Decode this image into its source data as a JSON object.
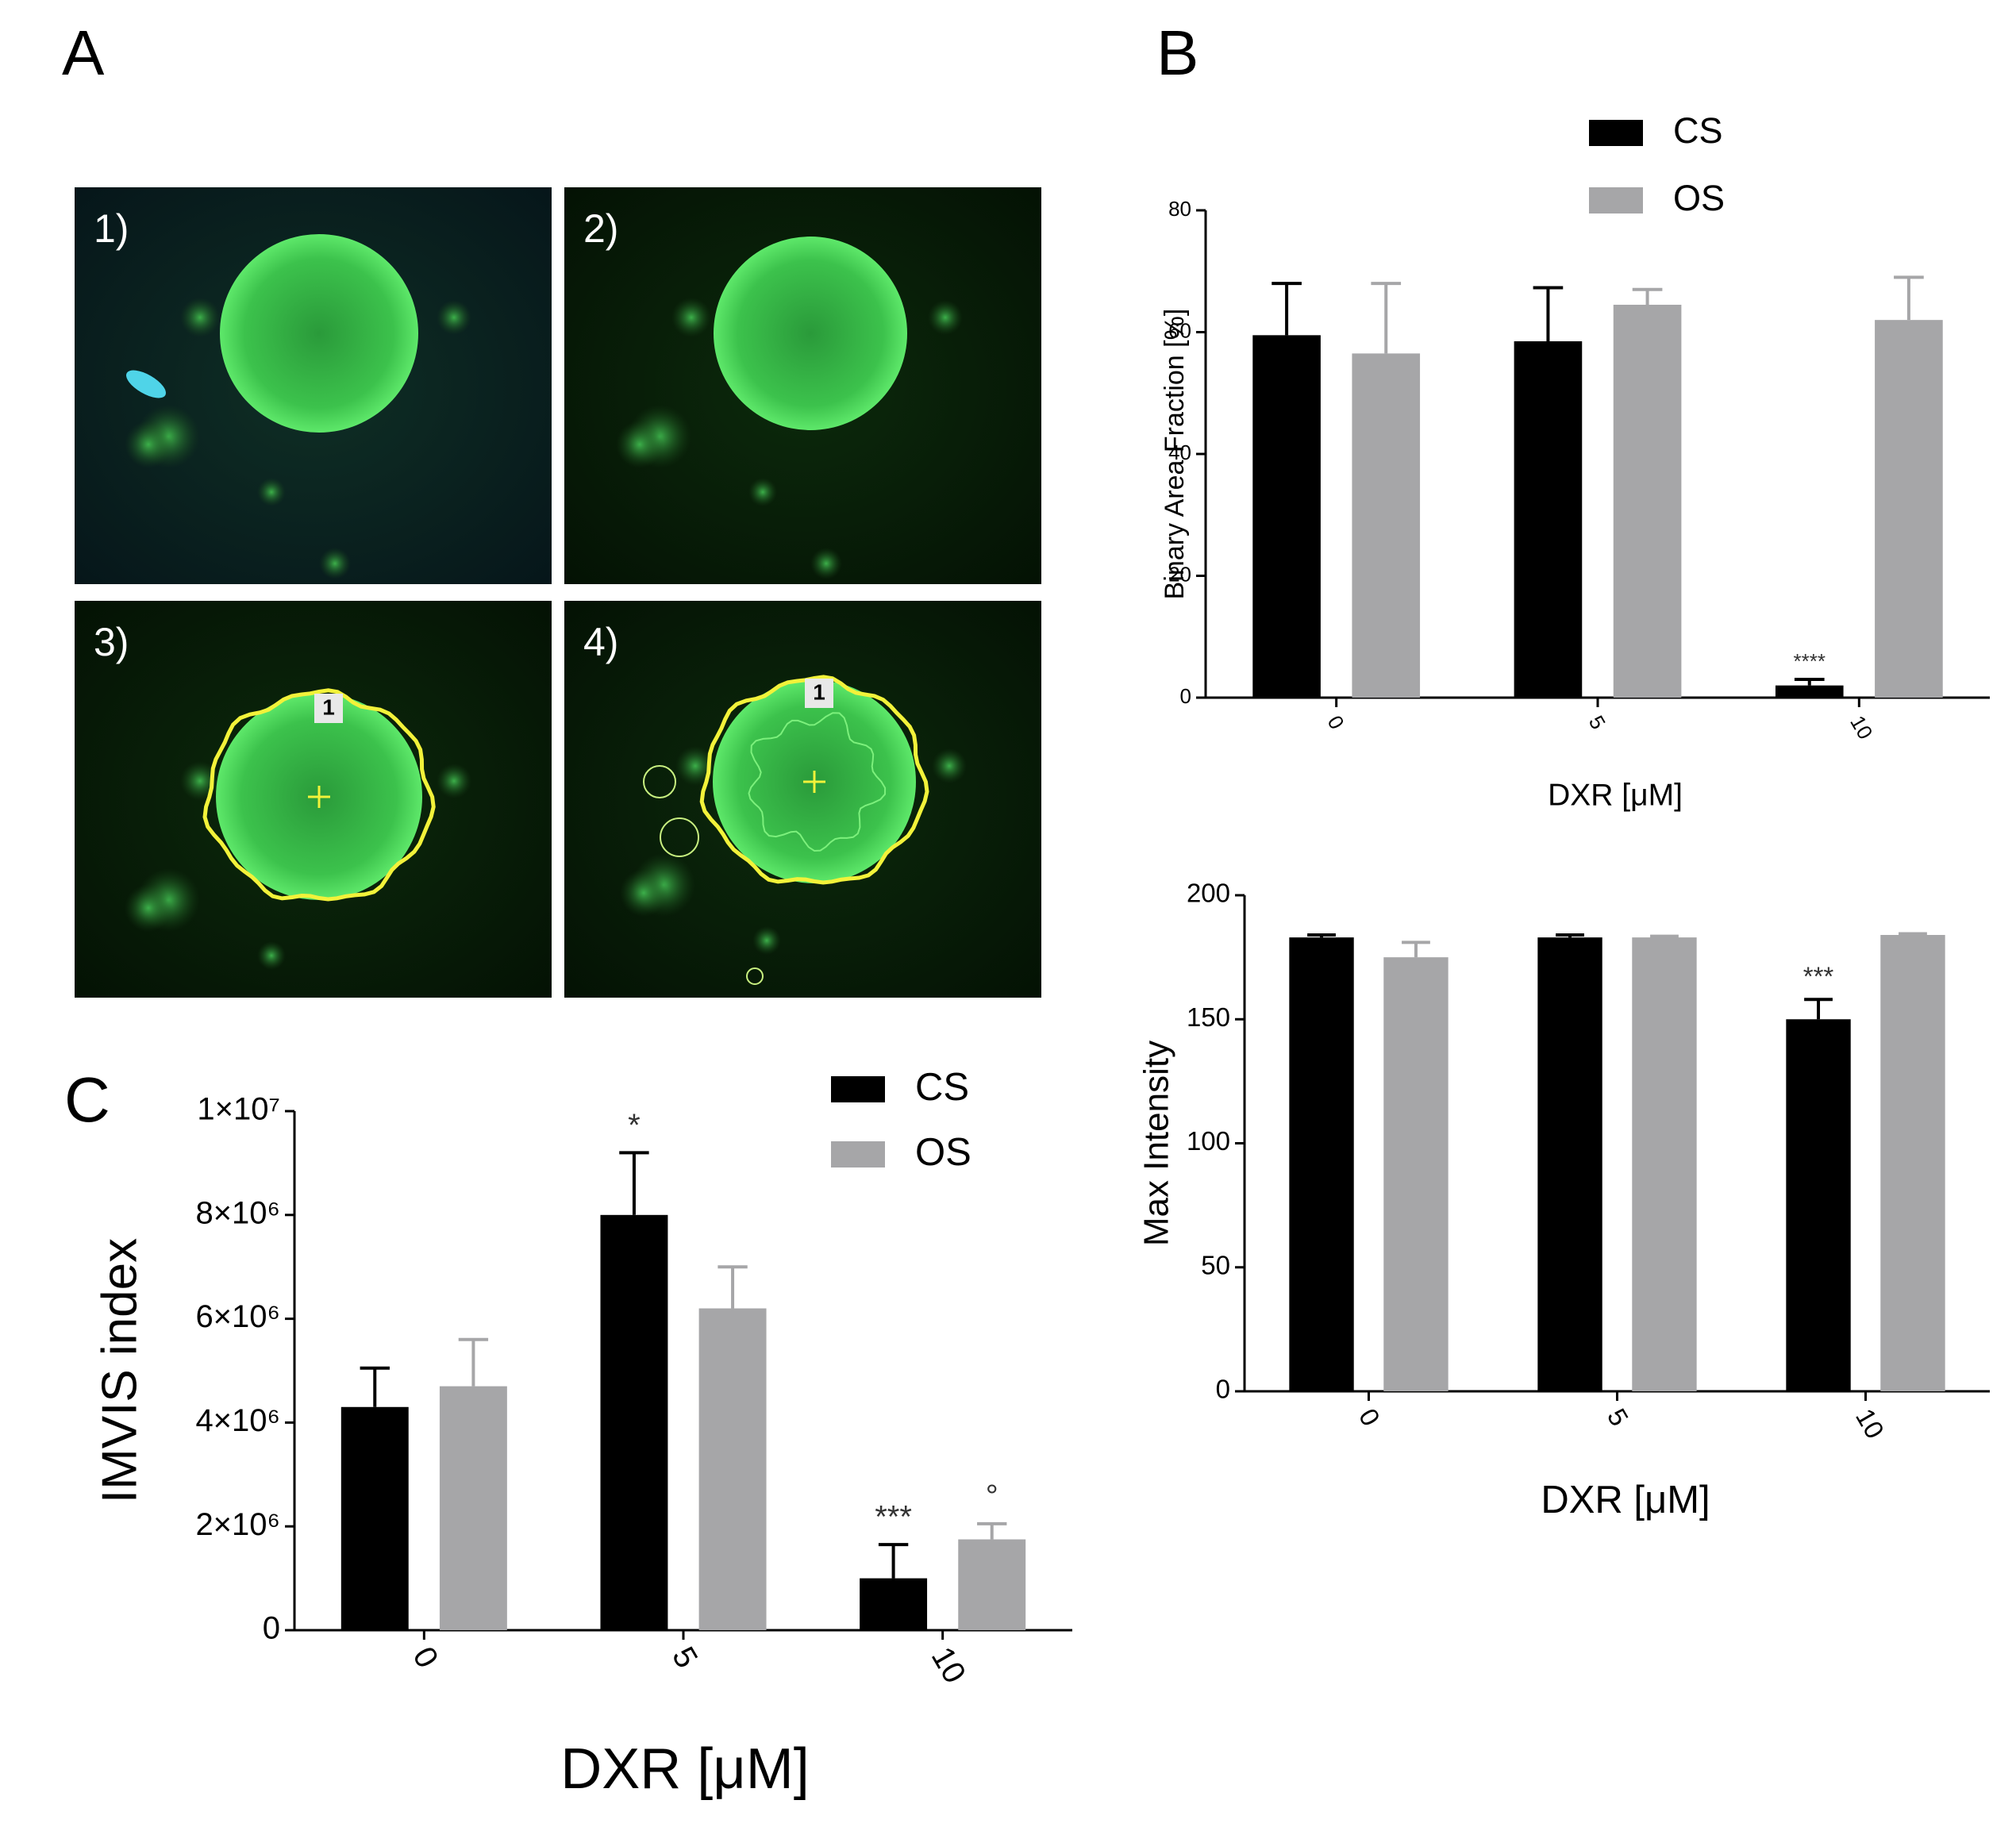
{
  "panel_labels": [
    "A",
    "B",
    "C"
  ],
  "image_labels": [
    "1)",
    "2)",
    "3)",
    "4)"
  ],
  "roi_labels": [
    "1",
    "1"
  ],
  "chart_data": [
    {
      "type": "bar",
      "y_label": "Binary Area Fraction [%]",
      "x_label": "DXR [μM]",
      "categories": [
        "0",
        "5",
        "10"
      ],
      "ylim": [
        0,
        80
      ],
      "yticks": [
        0,
        20,
        40,
        60,
        80
      ],
      "legend": true,
      "series": [
        {
          "name": "CS",
          "color": "#000000",
          "values": [
            59.5,
            58.5,
            2
          ],
          "errors": [
            8.5,
            8.8,
            1
          ],
          "annotations": [
            null,
            null,
            "****"
          ]
        },
        {
          "name": "OS",
          "color": "#a6a6a8",
          "values": [
            56.5,
            64.5,
            62
          ],
          "errors": [
            11.5,
            2.5,
            7
          ],
          "annotations": [
            null,
            null,
            null
          ]
        }
      ]
    },
    {
      "type": "bar",
      "y_label": "Max Intensity",
      "x_label": "DXR [μM]",
      "categories": [
        "0",
        "5",
        "10"
      ],
      "ylim": [
        0,
        200
      ],
      "yticks": [
        0,
        50,
        100,
        150,
        200
      ],
      "legend": false,
      "series": [
        {
          "name": "CS",
          "color": "#000000",
          "values": [
            183,
            183,
            150
          ],
          "errors": [
            1,
            1,
            8
          ],
          "annotations": [
            null,
            null,
            "***"
          ]
        },
        {
          "name": "OS",
          "color": "#a6a6a8",
          "values": [
            175,
            183,
            184
          ],
          "errors": [
            6,
            0.5,
            0.5
          ],
          "annotations": [
            null,
            null,
            null
          ]
        }
      ]
    },
    {
      "type": "bar",
      "y_label": "IMVIS index",
      "x_label": "DXR [μM]",
      "categories": [
        "0",
        "5",
        "10"
      ],
      "ylim": [
        0,
        10000000
      ],
      "yticks": [
        0,
        {
          "value": 2000000,
          "label": "2×10⁶"
        },
        {
          "value": 4000000,
          "label": "4×10⁶"
        },
        {
          "value": 6000000,
          "label": "6×10⁶"
        },
        {
          "value": 8000000,
          "label": "8×10⁶"
        },
        {
          "value": 10000000,
          "label": "1×10⁷"
        }
      ],
      "legend": true,
      "series": [
        {
          "name": "CS",
          "color": "#000000",
          "values": [
            4300000,
            8000000,
            1000000
          ],
          "errors": [
            750000,
            1200000,
            650000
          ],
          "annotations": [
            null,
            "*",
            "***"
          ]
        },
        {
          "name": "OS",
          "color": "#a6a6a8",
          "values": [
            4700000,
            6200000,
            1750000
          ],
          "errors": [
            900000,
            800000,
            300000
          ],
          "annotations": [
            null,
            null,
            "°"
          ]
        }
      ]
    }
  ]
}
